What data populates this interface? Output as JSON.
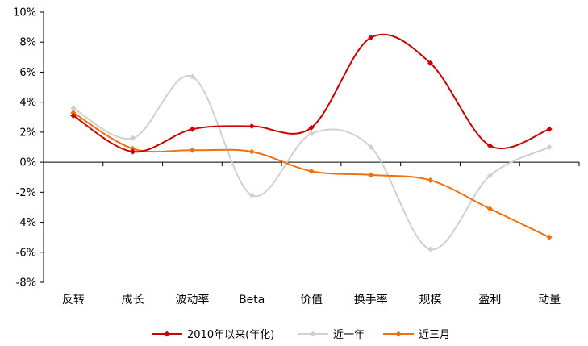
{
  "chart_data": {
    "type": "line",
    "categories": [
      "反转",
      "成长",
      "波动率",
      "Beta",
      "价值",
      "换手率",
      "规模",
      "盈利",
      "动量"
    ],
    "ylim": [
      -8,
      10
    ],
    "yticks": [
      10,
      8,
      6,
      4,
      2,
      0,
      -2,
      -4,
      -6,
      -8
    ],
    "ytick_labels": [
      "10%",
      "8%",
      "6%",
      "4%",
      "2%",
      "0%",
      "-2%",
      "-4%",
      "-6%",
      "-8%"
    ],
    "legend_position": "bottom",
    "smooth": true,
    "series": [
      {
        "name": "2010年以来(年化)",
        "color": "#CC0000",
        "values": [
          3.1,
          0.7,
          2.2,
          2.4,
          2.3,
          8.3,
          6.6,
          1.1,
          2.2
        ]
      },
      {
        "name": "近一年",
        "color": "#D0D0D0",
        "values": [
          3.6,
          1.6,
          5.7,
          -2.2,
          1.9,
          1.0,
          -5.8,
          -0.9,
          1.0
        ]
      },
      {
        "name": "近三月",
        "color": "#F07010",
        "values": [
          3.3,
          0.9,
          0.8,
          0.7,
          -0.6,
          -0.85,
          -1.2,
          -3.1,
          -5.0
        ]
      }
    ]
  }
}
